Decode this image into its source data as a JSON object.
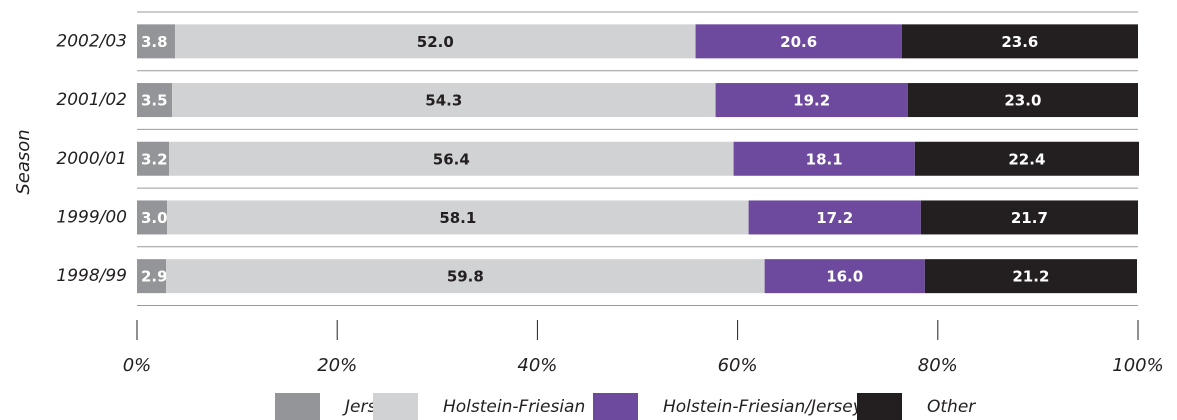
{
  "chart_data": {
    "type": "stacked_bar",
    "orientation": "horizontal",
    "y_label": "Season",
    "categories": [
      "2002/03",
      "2001/02",
      "2000/01",
      "1999/00",
      "1998/99"
    ],
    "series": [
      {
        "name": "Jersey",
        "color": "#939598",
        "values": [
          3.8,
          3.5,
          3.2,
          3.0,
          2.9
        ],
        "value_labels": [
          "3.8",
          "3.5",
          "3.2",
          "3.0",
          "2.9"
        ]
      },
      {
        "name": "Holstein-Friesian",
        "color": "#d1d2d4",
        "values": [
          52.0,
          54.3,
          56.4,
          58.1,
          59.8
        ],
        "value_labels": [
          "52.0",
          "54.3",
          "56.4",
          "58.1",
          "59.8"
        ]
      },
      {
        "name": "Holstein-Friesian/Jersey",
        "color": "#6e4a9e",
        "values": [
          20.6,
          19.2,
          18.1,
          17.2,
          16.0
        ],
        "value_labels": [
          "20.6",
          "19.2",
          "18.1",
          "17.2",
          "16.0"
        ]
      },
      {
        "name": "Other",
        "color": "#231f20",
        "values": [
          23.6,
          23.0,
          22.4,
          21.7,
          21.2
        ],
        "value_labels": [
          "23.6",
          "23.0",
          "22.4",
          "21.7",
          "21.2"
        ]
      }
    ],
    "xlim": [
      0,
      100
    ],
    "xticks": [
      {
        "value": 0,
        "label": "0%"
      },
      {
        "value": 20,
        "label": "20%"
      },
      {
        "value": 40,
        "label": "40%"
      },
      {
        "value": 60,
        "label": "60%"
      },
      {
        "value": 80,
        "label": "80%"
      },
      {
        "value": 100,
        "label": "100%"
      }
    ],
    "legend": "bottom"
  }
}
